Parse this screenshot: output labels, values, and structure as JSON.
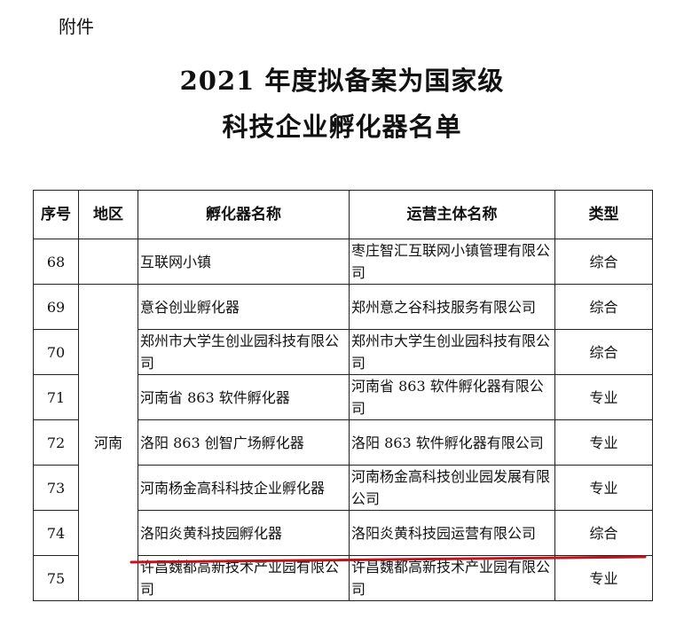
{
  "attachment_label": "附件",
  "title_line1": "2021 年度拟备案为国家级",
  "title_line2": "科技企业孵化器名单",
  "table": {
    "headers": [
      "序号",
      "地区",
      "孵化器名称",
      "运营主体名称",
      "类型"
    ],
    "region_merged": "河南",
    "rows": [
      {
        "no": "68",
        "region": "",
        "name": "互联网小镇",
        "operator": "枣庄智汇互联网小镇管理有限公司",
        "type": "综合"
      },
      {
        "no": "69",
        "name": "意谷创业孵化器",
        "operator": "郑州意之谷科技服务有限公司",
        "type": "综合"
      },
      {
        "no": "70",
        "name": "郑州市大学生创业园科技有限公司",
        "operator": "郑州市大学生创业园科技有限公司",
        "type": "综合"
      },
      {
        "no": "71",
        "name": "河南省 863 软件孵化器",
        "operator": "河南省 863 软件孵化器有限公司",
        "type": "专业"
      },
      {
        "no": "72",
        "name": "洛阳 863 创智广场孵化器",
        "operator": "洛阳 863 软件孵化器有限公司",
        "type": "专业"
      },
      {
        "no": "73",
        "name": "河南杨金高科科技企业孵化器",
        "operator": "河南杨金高科技创业园发展有限公司",
        "type": "专业"
      },
      {
        "no": "74",
        "name": "洛阳炎黄科技园孵化器",
        "operator": "洛阳炎黄科技园运营有限公司",
        "type": "综合"
      },
      {
        "no": "75",
        "name": "许昌魏都高新技术产业园有限公司",
        "operator": "许昌魏都高新技术产业园有限公司",
        "type": "专业"
      }
    ]
  },
  "annotation_color": "#c0141c"
}
